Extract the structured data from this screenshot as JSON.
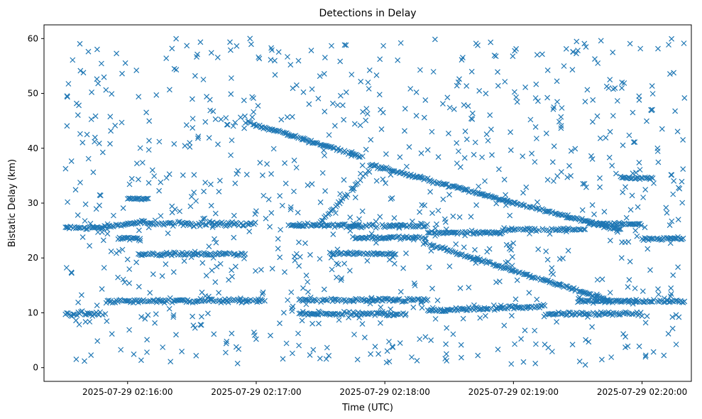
{
  "chart_data": {
    "type": "scatter",
    "title": "Detections in Delay",
    "xlabel": "Time (UTC)",
    "ylabel": "Bistatic Delay (km)",
    "x_tick_labels": [
      "2025-07-29 02:16:00",
      "2025-07-29 02:17:00",
      "2025-07-29 02:18:00",
      "2025-07-29 02:19:00",
      "2025-07-29 02:20:00"
    ],
    "y_tick_labels": [
      "0",
      "10",
      "20",
      "30",
      "40",
      "50",
      "60"
    ],
    "xlim": [
      "2025-07-29 02:15:21",
      "2025-07-29 02:20:23"
    ],
    "ylim": [
      -2.5,
      62.5
    ],
    "marker": "x",
    "grid": false,
    "colors": {
      "series": "#1f77b4",
      "axes": "#000000",
      "background": "#ffffff"
    },
    "series": [
      {
        "marker": "x",
        "tracks": [
          {
            "kind": "constant",
            "t_start": "2025-07-29 02:15:31",
            "t_end": "2025-07-29 02:15:48",
            "delay_km": 25.5,
            "spread_km": 0.3
          },
          {
            "kind": "linear",
            "t_start": "2025-07-29 02:15:48",
            "t_end": "2025-07-29 02:16:08",
            "delay_start_km": 25.6,
            "delay_end_km": 26.6,
            "spread_km": 0.3
          },
          {
            "kind": "constant",
            "t_start": "2025-07-29 02:16:08",
            "t_end": "2025-07-29 02:17:00",
            "delay_km": 26.2,
            "spread_km": 0.5
          },
          {
            "kind": "constant",
            "t_start": "2025-07-29 02:17:15",
            "t_end": "2025-07-29 02:18:20",
            "delay_km": 25.9,
            "spread_km": 0.4
          },
          {
            "kind": "constant",
            "t_start": "2025-07-29 02:18:20",
            "t_end": "2025-07-29 02:18:55",
            "delay_km": 24.6,
            "spread_km": 0.3
          },
          {
            "kind": "constant",
            "t_start": "2025-07-29 02:18:55",
            "t_end": "2025-07-29 02:19:35",
            "delay_km": 25.2,
            "spread_km": 0.3
          },
          {
            "kind": "constant",
            "t_start": "2025-07-29 02:19:35",
            "t_end": "2025-07-29 02:20:00",
            "delay_km": 26.2,
            "spread_km": 0.3
          },
          {
            "kind": "constant",
            "t_start": "2025-07-29 02:20:00",
            "t_end": "2025-07-29 02:20:20",
            "delay_km": 23.5,
            "spread_km": 0.3
          },
          {
            "kind": "constant",
            "t_start": "2025-07-29 02:15:31",
            "t_end": "2025-07-29 02:15:50",
            "delay_km": 9.8,
            "spread_km": 0.5
          },
          {
            "kind": "constant",
            "t_start": "2025-07-29 02:15:50",
            "t_end": "2025-07-29 02:16:10",
            "delay_km": 12.1,
            "spread_km": 0.4
          },
          {
            "kind": "constant",
            "t_start": "2025-07-29 02:16:10",
            "t_end": "2025-07-29 02:17:05",
            "delay_km": 12.2,
            "spread_km": 0.4
          },
          {
            "kind": "constant",
            "t_start": "2025-07-29 02:17:20",
            "t_end": "2025-07-29 02:18:20",
            "delay_km": 12.3,
            "spread_km": 0.4
          },
          {
            "kind": "constant",
            "t_start": "2025-07-29 02:17:20",
            "t_end": "2025-07-29 02:18:10",
            "delay_km": 9.8,
            "spread_km": 0.4
          },
          {
            "kind": "linear",
            "t_start": "2025-07-29 02:18:20",
            "t_end": "2025-07-29 02:19:15",
            "delay_start_km": 10.4,
            "delay_end_km": 11.2,
            "spread_km": 0.4
          },
          {
            "kind": "constant",
            "t_start": "2025-07-29 02:19:15",
            "t_end": "2025-07-29 02:20:00",
            "delay_km": 9.8,
            "spread_km": 0.4
          },
          {
            "kind": "constant",
            "t_start": "2025-07-29 02:19:30",
            "t_end": "2025-07-29 02:20:20",
            "delay_km": 12.1,
            "spread_km": 0.3
          },
          {
            "kind": "constant",
            "t_start": "2025-07-29 02:16:05",
            "t_end": "2025-07-29 02:16:55",
            "delay_km": 20.7,
            "spread_km": 0.3
          },
          {
            "kind": "constant",
            "t_start": "2025-07-29 02:17:35",
            "t_end": "2025-07-29 02:18:05",
            "delay_km": 20.8,
            "spread_km": 0.3
          },
          {
            "kind": "constant",
            "t_start": "2025-07-29 02:15:55",
            "t_end": "2025-07-29 02:16:06",
            "delay_km": 23.6,
            "spread_km": 0.3
          },
          {
            "kind": "constant",
            "t_start": "2025-07-29 02:17:45",
            "t_end": "2025-07-29 02:18:20",
            "delay_km": 23.7,
            "spread_km": 0.3
          },
          {
            "kind": "constant",
            "t_start": "2025-07-29 02:19:50",
            "t_end": "2025-07-29 02:20:05",
            "delay_km": 34.6,
            "spread_km": 0.3
          },
          {
            "kind": "constant",
            "t_start": "2025-07-29 02:16:00",
            "t_end": "2025-07-29 02:16:10",
            "delay_km": 30.8,
            "spread_km": 0.3
          },
          {
            "kind": "linear",
            "t_start": "2025-07-29 02:16:55",
            "t_end": "2025-07-29 02:17:50",
            "delay_start_km": 44.8,
            "delay_end_km": 38.4,
            "spread_km": 0.3
          },
          {
            "kind": "linear",
            "t_start": "2025-07-29 02:17:53",
            "t_end": "2025-07-29 02:19:50",
            "delay_start_km": 37.0,
            "delay_end_km": 25.0,
            "spread_km": 0.3
          },
          {
            "kind": "linear",
            "t_start": "2025-07-29 02:17:30",
            "t_end": "2025-07-29 02:17:53",
            "delay_start_km": 26.5,
            "delay_end_km": 36.0,
            "spread_km": 0.4
          },
          {
            "kind": "linear",
            "t_start": "2025-07-29 02:18:18",
            "t_end": "2025-07-29 02:19:45",
            "delay_start_km": 22.8,
            "delay_end_km": 12.2,
            "spread_km": 0.3
          }
        ],
        "background_detections": {
          "count": 900,
          "t_start": "2025-07-29 02:15:31",
          "t_end": "2025-07-29 02:20:20",
          "delay_min_km": 0.5,
          "delay_max_km": 60.0
        }
      }
    ]
  }
}
